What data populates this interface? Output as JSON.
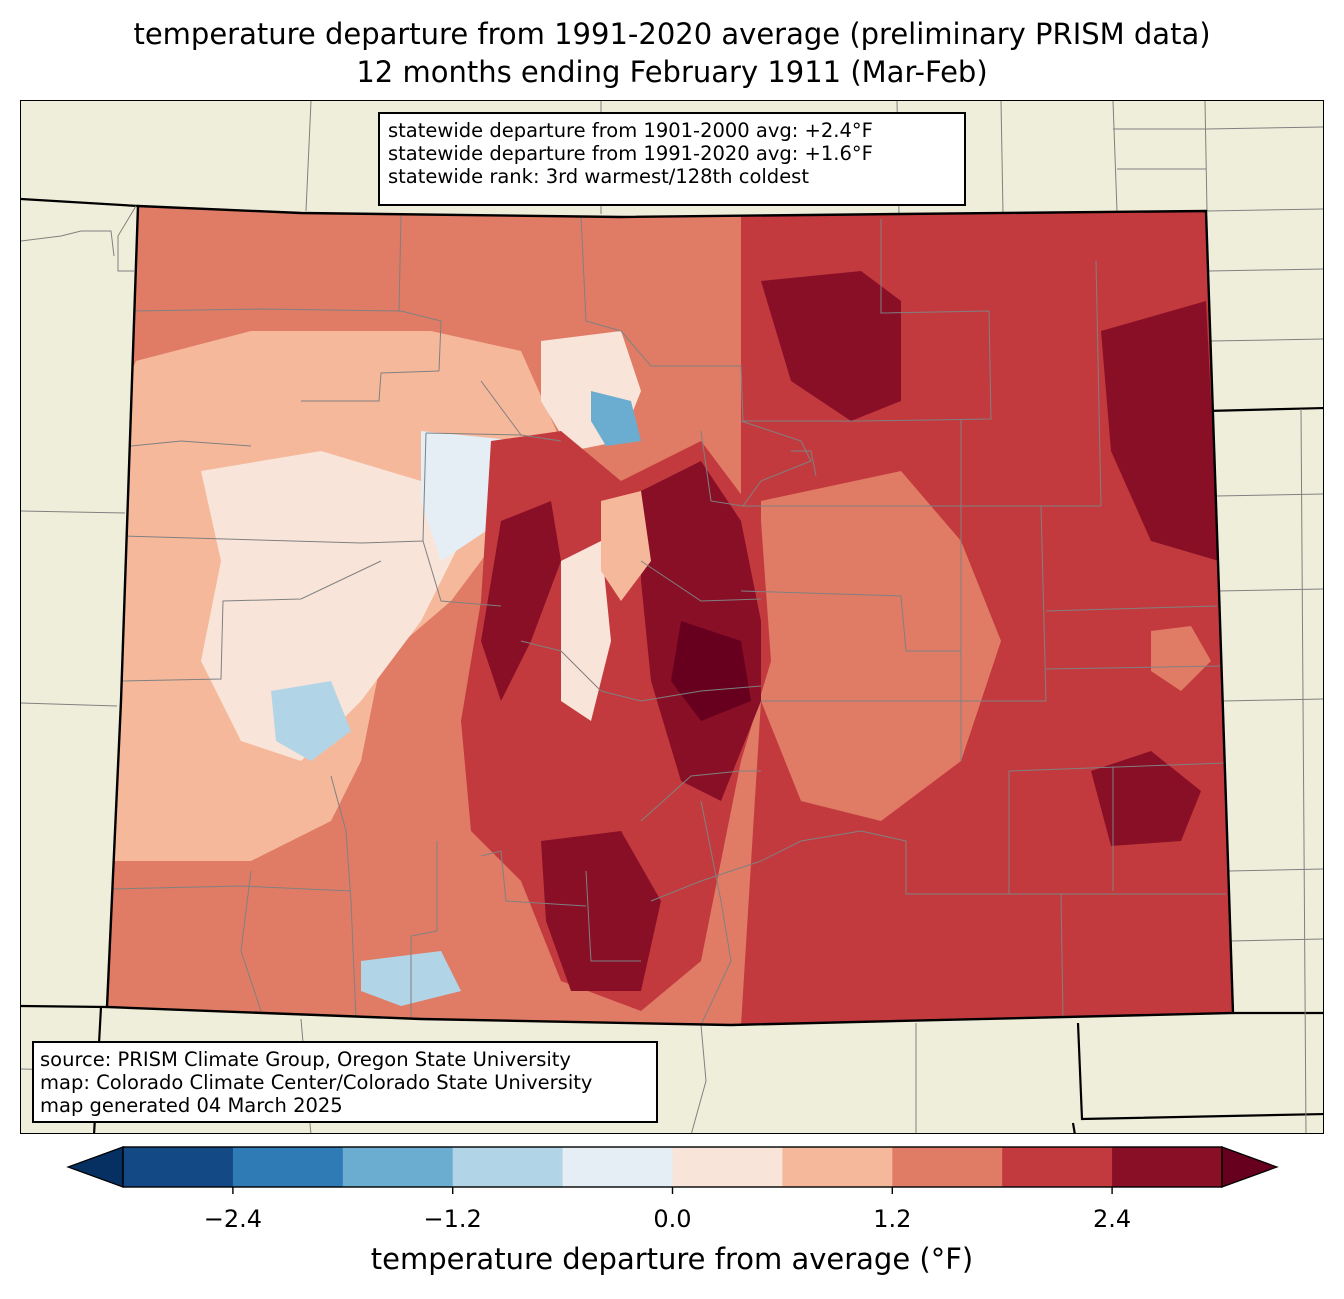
{
  "title": {
    "line1": "temperature departure from 1991-2020 average (preliminary PRISM data)",
    "line2": "12 months ending February 1911 (Mar-Feb)"
  },
  "stats": {
    "line1": "statewide departure from 1901-2000 avg: +2.4°F",
    "line2": "statewide departure from 1991-2020 avg: +1.6°F",
    "line3": "statewide rank: 3rd warmest/128th coldest"
  },
  "source": {
    "line1": "source: PRISM Climate Group, Oregon State University",
    "line2": "map: Colorado Climate Center/Colorado State University",
    "line3": "map generated 04 March 2025"
  },
  "colorbar": {
    "label": "temperature departure from average (°F)",
    "ticks": [
      "−2.4",
      "−1.2",
      "0.0",
      "1.2",
      "2.4"
    ],
    "tick_values": [
      -2.4,
      -1.2,
      0.0,
      1.2,
      2.4
    ],
    "range": [
      -3.0,
      3.0
    ],
    "boundaries": [
      -3.0,
      -2.4,
      -1.8,
      -1.2,
      -0.6,
      0.0,
      0.6,
      1.2,
      1.8,
      2.4,
      3.0
    ],
    "colors": [
      "#134a86",
      "#2f7bb6",
      "#6badd0",
      "#b1d5e7",
      "#e4eef4",
      "#f9e4d9",
      "#f6b89b",
      "#e07c66",
      "#c33a3e",
      "#890f27"
    ],
    "under_color": "#053061",
    "over_color": "#67001f"
  },
  "map_colors": {
    "land": "#efeedb",
    "state_border": "#000000",
    "county_border": "#808080"
  }
}
